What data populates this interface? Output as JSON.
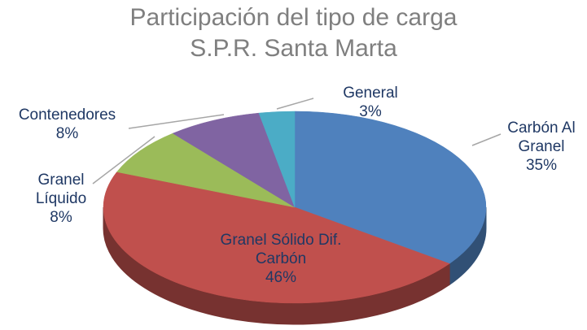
{
  "chart_data": {
    "type": "pie",
    "title": "Participación del tipo de carga",
    "subtitle": "S.P.R. Santa Marta",
    "categories": [
      "Carbón Al Granel",
      "Granel Sólido Dif. Carbón",
      "Granel Líquido",
      "Contenedores",
      "General"
    ],
    "values": [
      35,
      46,
      8,
      8,
      3
    ],
    "value_labels": [
      "35%",
      "46%",
      "8%",
      "8%",
      "3%"
    ],
    "colors": [
      "#4f81bd",
      "#c0504d",
      "#9bbb59",
      "#8064a2",
      "#4bacc6"
    ]
  }
}
